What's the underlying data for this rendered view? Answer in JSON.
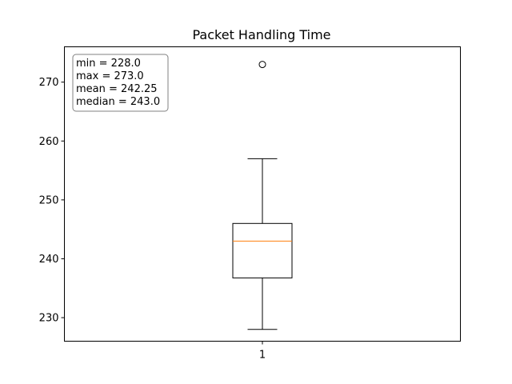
{
  "chart_data": {
    "type": "box",
    "title": "Packet Handling Time",
    "xlabel": "",
    "ylabel": "",
    "categories": [
      "1"
    ],
    "ylim": [
      226,
      276
    ],
    "yticks": [
      230,
      240,
      250,
      260,
      270
    ],
    "grid": false,
    "box": {
      "whisker_low": 228,
      "q1": 236.75,
      "median": 243,
      "q3": 246,
      "whisker_high": 257,
      "outliers": [
        273
      ]
    },
    "stats_box": {
      "position": "top-left",
      "lines": [
        "min = 228.0",
        "max = 273.0",
        "mean = 242.25",
        "median = 243.0"
      ]
    },
    "colors": {
      "box": "#000000",
      "median_line": "#ff7f0e",
      "stats_box_border": "#808080"
    }
  }
}
